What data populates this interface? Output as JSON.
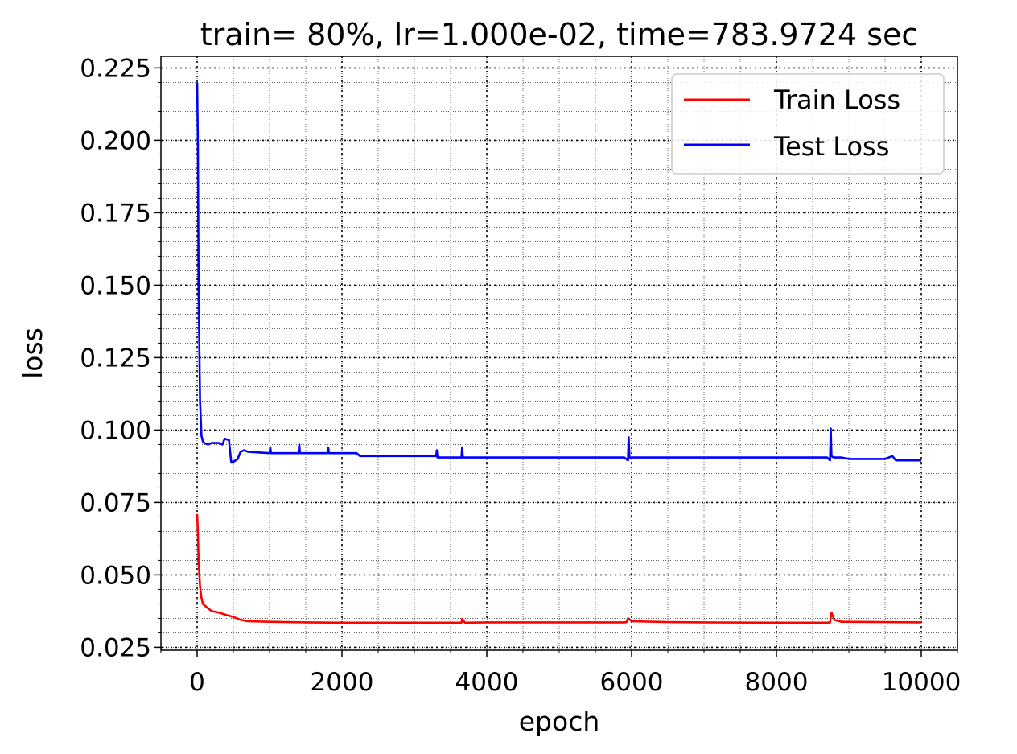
{
  "chart_data": {
    "type": "line",
    "title": "train= 80%, lr=1.000e-02, time=783.9724 sec",
    "xlabel": "epoch",
    "ylabel": "loss",
    "xlim": [
      -500,
      10500
    ],
    "ylim": [
      0.024,
      0.229
    ],
    "xticks": [
      0,
      2000,
      4000,
      6000,
      8000,
      10000
    ],
    "xtick_labels": [
      "0",
      "2000",
      "4000",
      "6000",
      "8000",
      "10000"
    ],
    "yticks": [
      0.025,
      0.05,
      0.075,
      0.1,
      0.125,
      0.15,
      0.175,
      0.2,
      0.225
    ],
    "ytick_labels": [
      "0.025",
      "0.050",
      "0.075",
      "0.100",
      "0.125",
      "0.150",
      "0.175",
      "0.200",
      "0.225"
    ],
    "grid": "dotted, major and minor",
    "legend_position": "upper right",
    "series": [
      {
        "name": "Train Loss",
        "color": "#ff0000",
        "x": [
          0,
          10,
          20,
          40,
          60,
          80,
          100,
          150,
          200,
          300,
          400,
          500,
          550,
          600,
          700,
          1000,
          1500,
          2000,
          2500,
          3000,
          3600,
          3650,
          3660,
          3700,
          4000,
          5000,
          5900,
          5930,
          5950,
          6000,
          6500,
          7000,
          8000,
          8700,
          8740,
          8760,
          8800,
          8900,
          9500,
          10000
        ],
        "y": [
          0.071,
          0.065,
          0.055,
          0.046,
          0.042,
          0.04,
          0.0395,
          0.0385,
          0.0375,
          0.037,
          0.0362,
          0.0355,
          0.035,
          0.0345,
          0.034,
          0.0338,
          0.0336,
          0.0335,
          0.0335,
          0.0335,
          0.0335,
          0.0335,
          0.0348,
          0.0335,
          0.0336,
          0.0336,
          0.0336,
          0.0337,
          0.035,
          0.034,
          0.0337,
          0.0336,
          0.0335,
          0.0335,
          0.0336,
          0.037,
          0.0345,
          0.0338,
          0.0337,
          0.0336
        ]
      },
      {
        "name": "Test Loss",
        "color": "#0000ff",
        "x": [
          0,
          10,
          20,
          40,
          60,
          80,
          100,
          150,
          200,
          300,
          350,
          380,
          440,
          470,
          500,
          560,
          600,
          650,
          700,
          1000,
          1010,
          1020,
          1400,
          1410,
          1420,
          1800,
          1810,
          1820,
          2200,
          2250,
          2300,
          2900,
          3300,
          3310,
          3320,
          3650,
          3660,
          3670,
          4000,
          5000,
          5900,
          5950,
          5960,
          5970,
          6000,
          7000,
          8000,
          8700,
          8740,
          8750,
          8760,
          8790,
          8900,
          9000,
          9500,
          9600,
          9650,
          10000
        ],
        "y": [
          0.22,
          0.2,
          0.15,
          0.11,
          0.098,
          0.096,
          0.0955,
          0.095,
          0.0955,
          0.0955,
          0.095,
          0.097,
          0.0965,
          0.089,
          0.089,
          0.09,
          0.0925,
          0.093,
          0.0925,
          0.092,
          0.094,
          0.092,
          0.092,
          0.095,
          0.092,
          0.092,
          0.094,
          0.092,
          0.092,
          0.091,
          0.091,
          0.091,
          0.091,
          0.093,
          0.0905,
          0.0905,
          0.094,
          0.0905,
          0.0905,
          0.0905,
          0.0905,
          0.0895,
          0.0975,
          0.0905,
          0.0905,
          0.0905,
          0.0905,
          0.0905,
          0.0895,
          0.1005,
          0.091,
          0.0905,
          0.0905,
          0.09,
          0.09,
          0.091,
          0.0895,
          0.0895
        ]
      }
    ]
  }
}
